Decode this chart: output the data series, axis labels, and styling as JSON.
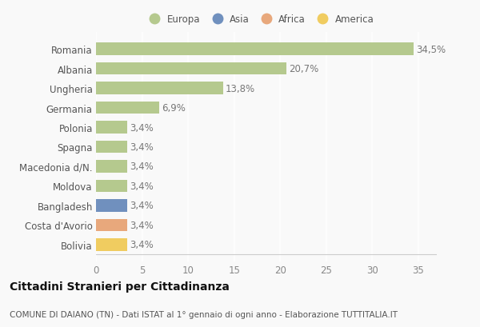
{
  "categories": [
    "Romania",
    "Albania",
    "Ungheria",
    "Germania",
    "Polonia",
    "Spagna",
    "Macedonia d/N.",
    "Moldova",
    "Bangladesh",
    "Costa d'Avorio",
    "Bolivia"
  ],
  "values": [
    34.5,
    20.7,
    13.8,
    6.9,
    3.4,
    3.4,
    3.4,
    3.4,
    3.4,
    3.4,
    3.4
  ],
  "labels": [
    "34,5%",
    "20,7%",
    "13,8%",
    "6,9%",
    "3,4%",
    "3,4%",
    "3,4%",
    "3,4%",
    "3,4%",
    "3,4%",
    "3,4%"
  ],
  "bar_colors": [
    "#b5c98e",
    "#b5c98e",
    "#b5c98e",
    "#b5c98e",
    "#b5c98e",
    "#b5c98e",
    "#b5c98e",
    "#b5c98e",
    "#7090be",
    "#e8a87c",
    "#f0cc60"
  ],
  "legend_labels": [
    "Europa",
    "Asia",
    "Africa",
    "America"
  ],
  "legend_colors": [
    "#b5c98e",
    "#7090be",
    "#e8a87c",
    "#f0cc60"
  ],
  "title": "Cittadini Stranieri per Cittadinanza",
  "subtitle": "COMUNE DI DAIANO (TN) - Dati ISTAT al 1° gennaio di ogni anno - Elaborazione TUTTITALIA.IT",
  "xlim": [
    0,
    37
  ],
  "xticks": [
    0,
    5,
    10,
    15,
    20,
    25,
    30,
    35
  ],
  "background_color": "#f9f9f9",
  "grid_color": "#ffffff",
  "bar_height": 0.65,
  "title_fontsize": 10,
  "subtitle_fontsize": 7.5,
  "label_fontsize": 8.5,
  "tick_fontsize": 8.5,
  "legend_fontsize": 8.5
}
